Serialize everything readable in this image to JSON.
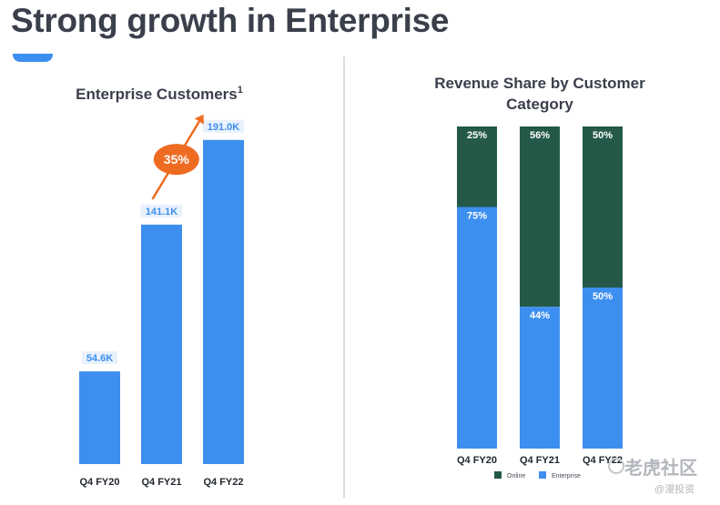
{
  "page": {
    "title": "Strong growth in Enterprise"
  },
  "chart_data": [
    {
      "type": "bar",
      "title": "Enterprise Customers",
      "title_superscript": "1",
      "categories": [
        "Q4 FY20",
        "Q4 FY21",
        "Q4 FY22"
      ],
      "values": [
        54.6,
        141.1,
        191.0
      ],
      "value_labels": [
        "54.6K",
        "141.1K",
        "191.0K"
      ],
      "unit": "K",
      "ylim": [
        0,
        200
      ],
      "annotation": {
        "text": "35%",
        "from_category": "Q4 FY21",
        "to_category": "Q4 FY22"
      },
      "colors": {
        "bar": "#3d8fef",
        "annotation": "#ee6c22",
        "label_bg": "#e8f1fc"
      }
    },
    {
      "type": "bar",
      "stacked": true,
      "title": "Revenue Share by Customer Category",
      "categories": [
        "Q4 FY20",
        "Q4 FY21",
        "Q4 FY22"
      ],
      "series": [
        {
          "name": "Online",
          "values": [
            25,
            56,
            50
          ],
          "color": "#24594a"
        },
        {
          "name": "Enterprise",
          "values": [
            75,
            44,
            50
          ],
          "color": "#3d8fef"
        }
      ],
      "unit": "%",
      "ylim": [
        0,
        100
      ],
      "legend": "bottom"
    }
  ],
  "watermark": {
    "main": "老虎社区",
    "sub": "@漫投资"
  }
}
